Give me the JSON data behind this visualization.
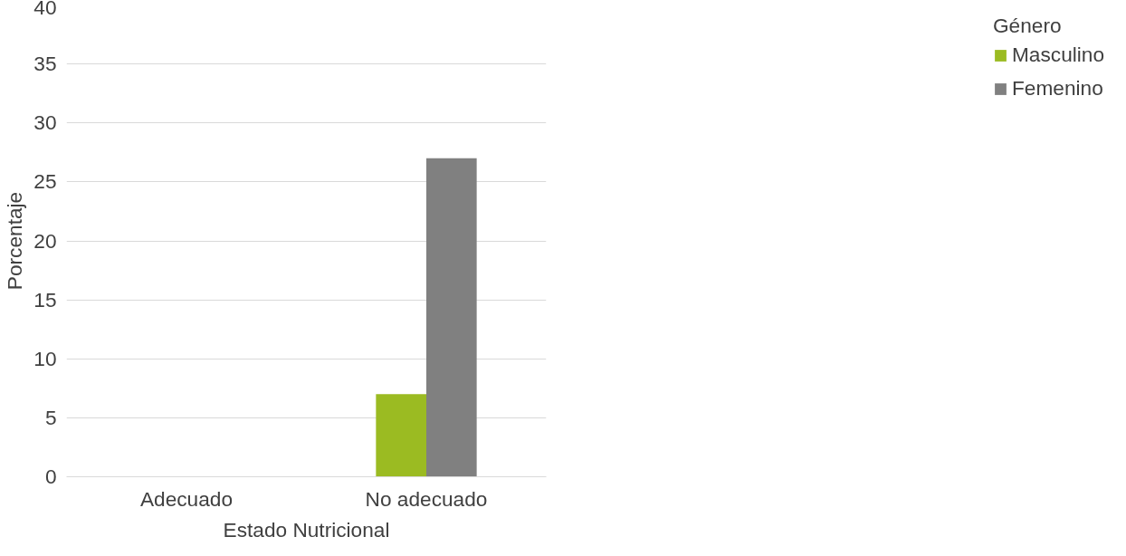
{
  "chart_data": {
    "type": "bar",
    "xlabel": "Estado Nutricional",
    "ylabel": "Porcentaje",
    "legend_title": "Género",
    "categories": [
      "Adecuado",
      "No adecuado"
    ],
    "series": [
      {
        "name": "Masculino",
        "color": "#9bbb22",
        "values": [
          0,
          7
        ]
      },
      {
        "name": "Femenino",
        "color": "#808080",
        "values": [
          0,
          27
        ]
      }
    ],
    "ylim": [
      0,
      40
    ],
    "yticks": [
      0,
      5,
      10,
      15,
      20,
      25,
      30,
      35,
      40
    ],
    "grid": "y",
    "legend": "right"
  }
}
